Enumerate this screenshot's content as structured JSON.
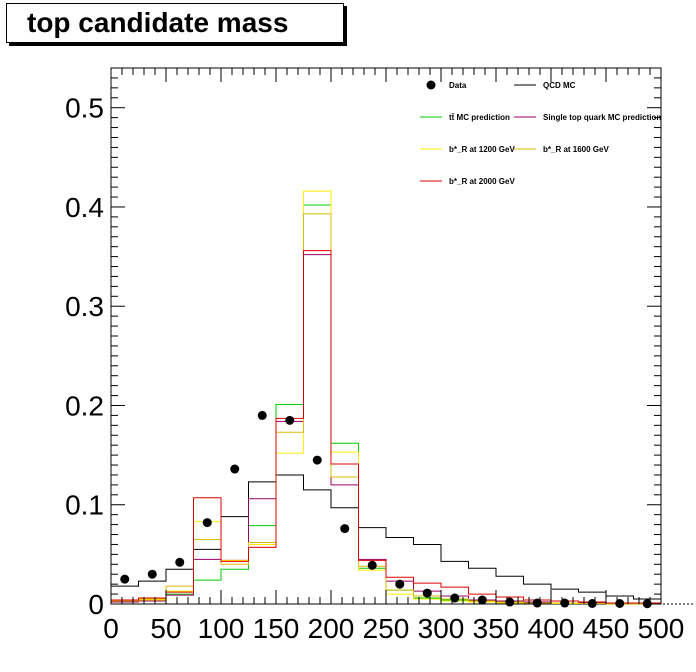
{
  "title": "top candidate mass",
  "chart_data": {
    "type": "histogram",
    "title": "top candidate mass",
    "xlabel": "",
    "ylabel": "",
    "xlim": [
      0,
      500
    ],
    "ylim": [
      0,
      0.54
    ],
    "bin_edges": [
      0,
      25,
      50,
      75,
      100,
      125,
      150,
      175,
      200,
      225,
      250,
      275,
      300,
      325,
      350,
      375,
      400,
      425,
      450,
      475,
      500
    ],
    "x_ticks": [
      "0",
      "50",
      "100",
      "150",
      "200",
      "250",
      "300",
      "350",
      "400",
      "450",
      "500"
    ],
    "y_ticks": [
      "0",
      "0.1",
      "0.2",
      "0.3",
      "0.4",
      "0.5"
    ],
    "y_tick_values": [
      0,
      0.1,
      0.2,
      0.3,
      0.4,
      0.5
    ],
    "legend": {
      "placement": "top-right"
    },
    "data_points": {
      "name": "Data",
      "x": [
        12.5,
        37.5,
        62.5,
        87.5,
        112.5,
        137.5,
        162.5,
        187.5,
        212.5,
        237.5,
        262.5,
        287.5,
        312.5,
        337.5,
        362.5,
        387.5,
        412.5,
        437.5,
        462.5,
        487.5
      ],
      "y": [
        0.025,
        0.03,
        0.042,
        0.082,
        0.136,
        0.19,
        0.185,
        0.145,
        0.076,
        0.039,
        0.02,
        0.011,
        0.006,
        0.004,
        0.002,
        0.001,
        0.001,
        0.0005,
        0.0005,
        0.0003
      ]
    },
    "series": [
      {
        "name": "QCD MC",
        "color": "#000000",
        "values": [
          0.018,
          0.023,
          0.035,
          0.055,
          0.088,
          0.123,
          0.13,
          0.115,
          0.097,
          0.077,
          0.067,
          0.06,
          0.043,
          0.036,
          0.028,
          0.02,
          0.015,
          0.012,
          0.008,
          0.005
        ]
      },
      {
        "name": "tt̄ MC prediction",
        "color": "#00cc00",
        "values": [
          0.003,
          0.004,
          0.01,
          0.024,
          0.035,
          0.079,
          0.201,
          0.402,
          0.162,
          0.036,
          0.014,
          0.006,
          0.004,
          0.003,
          0.002,
          0.001,
          0.001,
          0.0005,
          0.0005,
          0.0003
        ]
      },
      {
        "name": "Single top quark MC prediction",
        "color": "#990066",
        "values": [
          0.002,
          0.003,
          0.009,
          0.045,
          0.044,
          0.106,
          0.184,
          0.352,
          0.12,
          0.045,
          0.023,
          0.013,
          0.008,
          0.004,
          0.003,
          0.002,
          0.001,
          0.001,
          0.0005,
          0.0005
        ]
      },
      {
        "name": "b*_R at 1200 GeV",
        "color": "#ffee00",
        "values": [
          0.003,
          0.004,
          0.013,
          0.083,
          0.044,
          0.06,
          0.152,
          0.416,
          0.153,
          0.034,
          0.01,
          0.005,
          0.003,
          0.002,
          0.001,
          0.001,
          0.0005,
          0.0005,
          0.0003,
          0.0002
        ]
      },
      {
        "name": "b*_R at 1600 GeV",
        "color": "#ddbb00",
        "values": [
          0.003,
          0.005,
          0.018,
          0.065,
          0.04,
          0.062,
          0.173,
          0.393,
          0.128,
          0.038,
          0.014,
          0.008,
          0.005,
          0.003,
          0.002,
          0.001,
          0.001,
          0.0005,
          0.0003,
          0.0002
        ]
      },
      {
        "name": "b*_R at 2000 GeV",
        "color": "#dd0000",
        "values": [
          0.004,
          0.006,
          0.012,
          0.107,
          0.043,
          0.057,
          0.187,
          0.356,
          0.141,
          0.044,
          0.027,
          0.021,
          0.017,
          0.01,
          0.007,
          0.004,
          0.003,
          0.002,
          0.001,
          0.001
        ]
      }
    ]
  }
}
